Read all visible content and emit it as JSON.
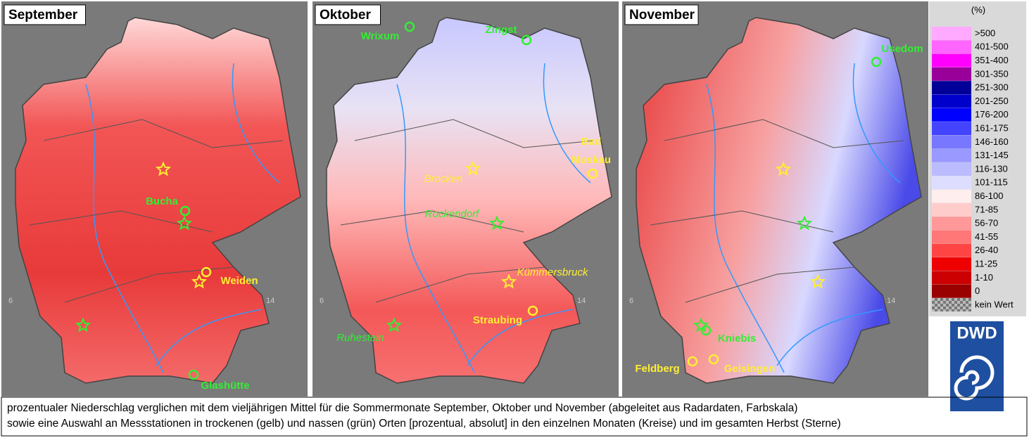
{
  "panels": [
    {
      "title": "September",
      "stations": [
        {
          "label": "Bucha",
          "color": "#33ee33"
        },
        {
          "label": "Weiden",
          "color": "#ffee33"
        },
        {
          "label": "Glashütte",
          "color": "#33ee33"
        }
      ]
    },
    {
      "title": "Oktober",
      "stations": [
        {
          "label": "Wrixum",
          "color": "#33ee33"
        },
        {
          "label": "Zingst",
          "color": "#33ee33"
        },
        {
          "label": "Bad",
          "color": "#ffee33"
        },
        {
          "label": "Muskau",
          "color": "#ffee33"
        },
        {
          "label": "Brocken",
          "color": "#ffee33"
        },
        {
          "label": "Rockendorf",
          "color": "#33ee33"
        },
        {
          "label": "Kümmersbruck",
          "color": "#ffee33"
        },
        {
          "label": "Straubing",
          "color": "#ffee33"
        },
        {
          "label": "Ruhestein",
          "color": "#33ee33"
        }
      ]
    },
    {
      "title": "November",
      "stations": [
        {
          "label": "Usedom",
          "color": "#33ee33"
        },
        {
          "label": "Kniebis",
          "color": "#33ee33"
        },
        {
          "label": "Feldberg",
          "color": "#ffee33"
        },
        {
          "label": "Geisingen",
          "color": "#ffee33"
        }
      ]
    }
  ],
  "map_ticks": [
    "6",
    "14"
  ],
  "legend": {
    "unit": "(%)",
    "classes": [
      {
        "label": ">500",
        "color": "#ffaaff"
      },
      {
        "label": "401-500",
        "color": "#ff66ff"
      },
      {
        "label": "351-400",
        "color": "#ff00ff"
      },
      {
        "label": "301-350",
        "color": "#990099"
      },
      {
        "label": "251-300",
        "color": "#000099"
      },
      {
        "label": "201-250",
        "color": "#0000cc"
      },
      {
        "label": "176-200",
        "color": "#0000ff"
      },
      {
        "label": "161-175",
        "color": "#4444ff"
      },
      {
        "label": "146-160",
        "color": "#7777ff"
      },
      {
        "label": "131-145",
        "color": "#9999ff"
      },
      {
        "label": "116-130",
        "color": "#bbbbff"
      },
      {
        "label": "101-115",
        "color": "#ddddff"
      },
      {
        "label": "86-100",
        "color": "#ffeeee"
      },
      {
        "label": "71-85",
        "color": "#ffcccc"
      },
      {
        "label": "56-70",
        "color": "#ff9999"
      },
      {
        "label": "41-55",
        "color": "#ff7777"
      },
      {
        "label": "26-40",
        "color": "#ff4444"
      },
      {
        "label": "11-25",
        "color": "#ee0000"
      },
      {
        "label": "1-10",
        "color": "#cc0000"
      },
      {
        "label": "0",
        "color": "#990000"
      },
      {
        "label": "kein Wert",
        "color": "url(#checker)"
      }
    ]
  },
  "logo": "DWD",
  "caption": [
    "prozentualer Niederschlag verglichen mit dem vieljährigen Mittel für die Sommermonate September, Oktober und November (abgeleitet aus Radardaten, Farbskala)",
    "sowie eine Auswahl an Messstationen in trockenen (gelb) und nassen (grün) Orten [prozentual, absolut] in den einzelnen Monaten (Kreise) und im gesamten Herbst (Sterne)"
  ]
}
